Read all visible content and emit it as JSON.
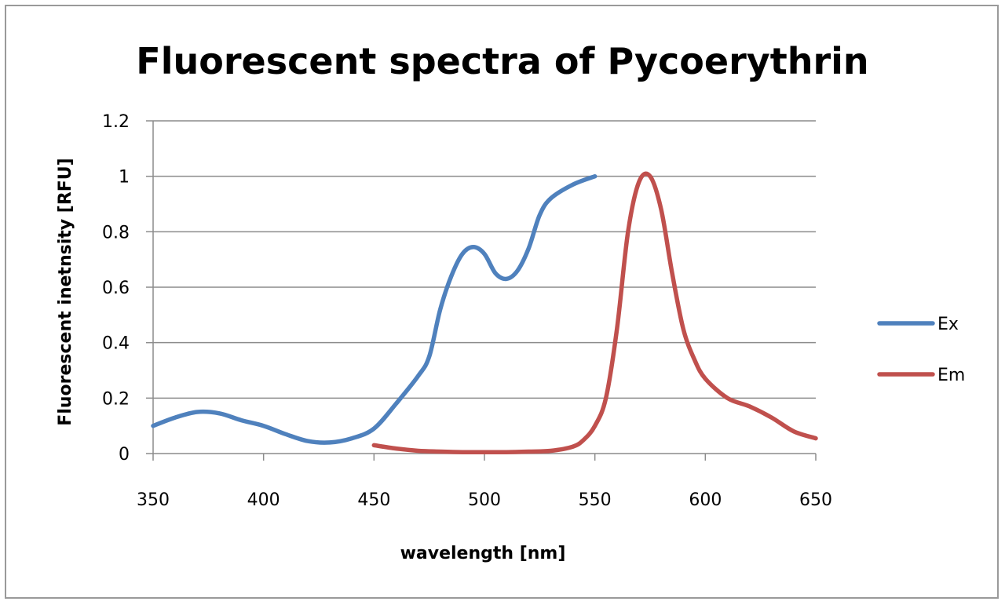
{
  "chart_data": {
    "type": "line",
    "title": "Fluorescent spectra of Pycoerythrin",
    "xlabel": "wavelength [nm]",
    "ylabel": "Fluorescent inetnsity [RFU]",
    "xlim": [
      350,
      650
    ],
    "ylim": [
      0,
      1.2
    ],
    "x_ticks": [
      350,
      400,
      450,
      500,
      550,
      600,
      650
    ],
    "x_tick_labels": [
      "350",
      "400",
      "450",
      "500",
      "550",
      "600",
      "650"
    ],
    "y_ticks": [
      0,
      0.2,
      0.4,
      0.6,
      0.8,
      1,
      1.2
    ],
    "y_tick_labels": [
      "0",
      "0.2",
      "0.4",
      "0.6",
      "0.8",
      "1",
      "1.2"
    ],
    "grid": true,
    "legend_position": "right",
    "series": [
      {
        "name": "Ex",
        "color": "#4f81bd",
        "x": [
          350,
          360,
          370,
          380,
          390,
          400,
          410,
          420,
          430,
          440,
          450,
          460,
          470,
          475,
          480,
          485,
          490,
          495,
          500,
          505,
          510,
          515,
          520,
          525,
          530,
          540,
          550
        ],
        "y": [
          0.1,
          0.13,
          0.15,
          0.145,
          0.12,
          0.1,
          0.07,
          0.045,
          0.04,
          0.055,
          0.09,
          0.18,
          0.28,
          0.35,
          0.52,
          0.64,
          0.72,
          0.745,
          0.72,
          0.65,
          0.63,
          0.66,
          0.74,
          0.86,
          0.92,
          0.97,
          1.0
        ]
      },
      {
        "name": "Em",
        "color": "#c0504d",
        "x": [
          450,
          460,
          470,
          480,
          490,
          500,
          510,
          520,
          530,
          540,
          545,
          550,
          555,
          560,
          565,
          570,
          575,
          580,
          585,
          590,
          595,
          600,
          610,
          620,
          630,
          640,
          650
        ],
        "y": [
          0.03,
          0.018,
          0.01,
          0.007,
          0.005,
          0.005,
          0.005,
          0.007,
          0.01,
          0.025,
          0.05,
          0.1,
          0.2,
          0.45,
          0.8,
          0.98,
          1.0,
          0.88,
          0.65,
          0.45,
          0.34,
          0.27,
          0.2,
          0.17,
          0.13,
          0.08,
          0.055
        ]
      }
    ]
  }
}
